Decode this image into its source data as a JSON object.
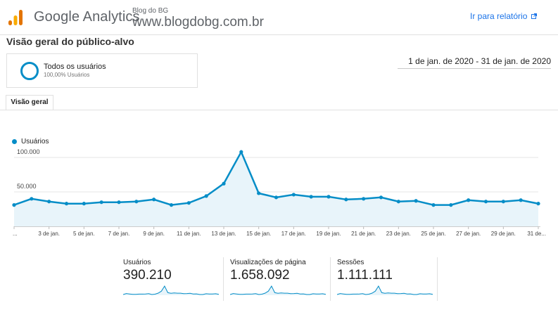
{
  "header": {
    "brand": "Google Analytics",
    "property_name": "Blog do BG",
    "property_url": "www.blogdobg.com.br",
    "report_link": "Ir para relatório",
    "logo_icon": "analytics-bars-icon",
    "brand_colors": [
      "#f9ab00",
      "#e37400"
    ]
  },
  "page": {
    "title": "Visão geral do público-alvo",
    "date_range": "1 de jan. de 2020 - 31 de jan. de 2020"
  },
  "segment": {
    "name": "Todos os usuários",
    "percent": "100,00% Usuários",
    "color": "#058dc7"
  },
  "tabs": [
    {
      "label": "Visão geral",
      "active": true
    }
  ],
  "chart_data": {
    "type": "area",
    "series": [
      {
        "name": "Usuários",
        "color": "#058dc7",
        "values": [
          31000,
          40000,
          36000,
          33000,
          33000,
          35000,
          35000,
          36000,
          39000,
          31000,
          34000,
          44000,
          62000,
          108000,
          48000,
          42000,
          46000,
          43000,
          43000,
          39000,
          40000,
          42000,
          36000,
          37000,
          31000,
          31000,
          38000,
          36000,
          36000,
          38000,
          33000
        ]
      }
    ],
    "x": [
      "1 de jan.",
      "2 de jan.",
      "3 de jan.",
      "4 de jan.",
      "5 de jan.",
      "6 de jan.",
      "7 de jan.",
      "8 de jan.",
      "9 de jan.",
      "10 de jan.",
      "11 de jan.",
      "12 de jan.",
      "13 de jan.",
      "14 de jan.",
      "15 de jan.",
      "16 de jan.",
      "17 de jan.",
      "18 de jan.",
      "19 de jan.",
      "20 de jan.",
      "21 de jan.",
      "22 de jan.",
      "23 de jan.",
      "24 de jan.",
      "25 de jan.",
      "26 de jan.",
      "27 de jan.",
      "28 de jan.",
      "29 de jan.",
      "30 de jan.",
      "31 de jan."
    ],
    "x_tick_labels": [
      "...",
      "3 de jan.",
      "5 de jan.",
      "7 de jan.",
      "9 de jan.",
      "11 de jan.",
      "13 de jan.",
      "15 de jan.",
      "17 de jan.",
      "19 de jan.",
      "21 de jan.",
      "23 de jan.",
      "25 de jan.",
      "27 de jan.",
      "29 de jan.",
      "31 de..."
    ],
    "y_ticks": [
      50000,
      100000
    ],
    "y_tick_labels": [
      "50.000",
      "100.000"
    ],
    "ylim": [
      0,
      100000
    ],
    "grid": true,
    "legend": "top-left",
    "fill_color": "#e8f4fa"
  },
  "metrics": [
    {
      "label": "Usuários",
      "value": "390.210"
    },
    {
      "label": "Visualizações de página",
      "value": "1.658.092"
    },
    {
      "label": "Sessões",
      "value": "1.111.111"
    }
  ]
}
